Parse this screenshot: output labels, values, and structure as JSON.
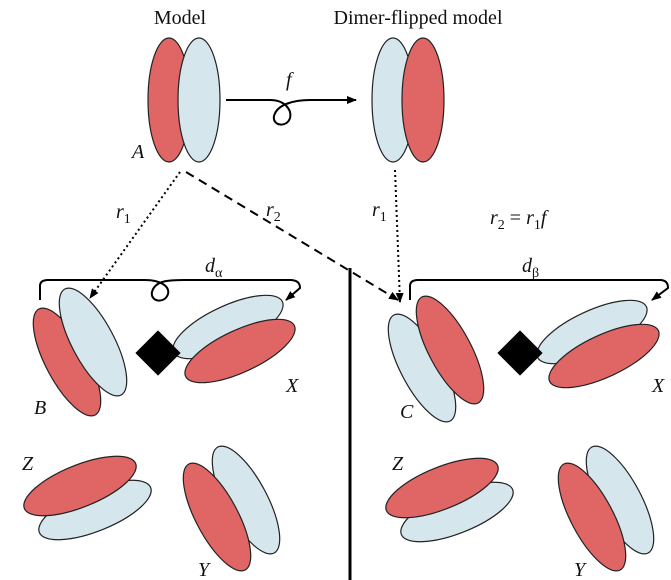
{
  "titles": {
    "model": "Model",
    "flipped": "Dimer-flipped model"
  },
  "labels": {
    "f": "f",
    "A": "A",
    "B": "B",
    "X1": "X",
    "C": "C",
    "X2": "X",
    "Z1": "Z",
    "Y1": "Y",
    "Z2": "Z",
    "Y2": "Y"
  },
  "arrows": {
    "r1_left": {
      "base": "r",
      "sub": "1"
    },
    "r2": {
      "base": "r",
      "sub": "2"
    },
    "r1_right": {
      "base": "r",
      "sub": "1"
    },
    "d_alpha": {
      "base": "d",
      "sub": "α"
    },
    "d_beta": {
      "base": "d",
      "sub": "β"
    }
  },
  "equation": {
    "lhs": "r",
    "lhs_sub": "2",
    "eq": " = ",
    "rhs": "r",
    "rhs_sub": "1",
    "rhs_tail": "f"
  }
}
